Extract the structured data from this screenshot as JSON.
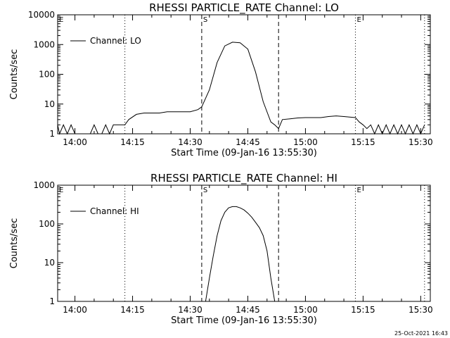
{
  "chart_data": [
    {
      "type": "line",
      "title": "RHESSI PARTICLE_RATE Channel: LO",
      "xlabel": "Start Time (09-Jan-16 13:55:30)",
      "ylabel": "Counts/sec",
      "yscale": "log",
      "ylim": [
        1,
        10000
      ],
      "yticks": [
        "1",
        "10",
        "100",
        "1000",
        "10000"
      ],
      "xlim_minutes_after_start": [
        0,
        97
      ],
      "xticks": [
        "14:00",
        "14:15",
        "14:30",
        "14:45",
        "15:00",
        "15:15",
        "15:30"
      ],
      "legend": {
        "position": "top-left",
        "entries": [
          "Channel: LO"
        ]
      },
      "markers": [
        {
          "label": "E",
          "time": "13:55:30",
          "style": "dotted"
        },
        {
          "label": "",
          "time": "14:13",
          "style": "dotted"
        },
        {
          "label": "S",
          "time": "14:33",
          "style": "dashed"
        },
        {
          "label": "",
          "time": "14:53",
          "style": "dashed"
        },
        {
          "label": "E",
          "time": "15:13",
          "style": "dotted"
        },
        {
          "label": "",
          "time": "15:31",
          "style": "dotted"
        }
      ],
      "series": [
        {
          "name": "Channel: LO",
          "x": [
            "13:55:30",
            "13:56",
            "13:57",
            "13:58",
            "13:59",
            "14:00",
            "14:01",
            "14:02",
            "14:03",
            "14:04",
            "14:05",
            "14:06",
            "14:07",
            "14:08",
            "14:09",
            "14:10",
            "14:11",
            "14:12",
            "14:13",
            "14:14",
            "14:16",
            "14:18",
            "14:20",
            "14:22",
            "14:24",
            "14:26",
            "14:28",
            "14:30",
            "14:32",
            "14:33",
            "14:35",
            "14:37",
            "14:39",
            "14:41",
            "14:43",
            "14:45",
            "14:47",
            "14:49",
            "14:51",
            "14:52",
            "14:53",
            "14:54",
            "14:56",
            "14:58",
            "15:00",
            "15:02",
            "15:04",
            "15:06",
            "15:08",
            "15:10",
            "15:12",
            "15:13",
            "15:14",
            "15:15",
            "15:16",
            "15:17",
            "15:18",
            "15:19",
            "15:20",
            "15:21",
            "15:22",
            "15:23",
            "15:24",
            "15:25",
            "15:26",
            "15:27",
            "15:28",
            "15:29",
            "15:30",
            "15:31"
          ],
          "y": [
            2,
            1,
            2,
            1,
            2,
            1,
            1,
            1,
            1,
            1,
            2,
            1,
            1,
            2,
            1,
            2,
            2,
            2,
            2,
            3,
            4.5,
            5,
            5,
            5,
            5.5,
            5.5,
            5.5,
            5.5,
            6.5,
            8,
            30,
            250,
            900,
            1200,
            1150,
            700,
            120,
            12,
            2.5,
            2,
            1.5,
            3,
            3.2,
            3.4,
            3.5,
            3.5,
            3.5,
            3.8,
            4,
            3.8,
            3.6,
            3.5,
            2.5,
            2,
            1.5,
            2,
            1,
            2,
            1,
            2,
            1,
            2,
            1,
            2,
            1,
            2,
            1,
            2,
            1,
            2
          ]
        }
      ]
    },
    {
      "type": "line",
      "title": "RHESSI PARTICLE_RATE Channel: HI",
      "xlabel": "Start Time (09-Jan-16 13:55:30)",
      "ylabel": "Counts/sec",
      "yscale": "log",
      "ylim": [
        1,
        1000
      ],
      "yticks": [
        "1",
        "10",
        "100",
        "1000"
      ],
      "xlim_minutes_after_start": [
        0,
        97
      ],
      "xticks": [
        "14:00",
        "14:15",
        "14:30",
        "14:45",
        "15:00",
        "15:15",
        "15:30"
      ],
      "legend": {
        "position": "top-left",
        "entries": [
          "Channel: HI"
        ]
      },
      "markers": [
        {
          "label": "E",
          "time": "13:55:30",
          "style": "dotted"
        },
        {
          "label": "",
          "time": "14:13",
          "style": "dotted"
        },
        {
          "label": "S",
          "time": "14:33",
          "style": "dashed"
        },
        {
          "label": "",
          "time": "14:53",
          "style": "dashed"
        },
        {
          "label": "E",
          "time": "15:13",
          "style": "dotted"
        },
        {
          "label": "",
          "time": "15:31",
          "style": "dotted"
        }
      ],
      "series": [
        {
          "name": "Channel: HI",
          "x": [
            "14:34",
            "14:35",
            "14:36",
            "14:37",
            "14:38",
            "14:39",
            "14:40",
            "14:41",
            "14:42",
            "14:43",
            "14:44",
            "14:45",
            "14:46",
            "14:47",
            "14:48",
            "14:49",
            "14:50",
            "14:51",
            "14:52"
          ],
          "y": [
            1,
            4,
            15,
            50,
            120,
            200,
            260,
            280,
            280,
            260,
            230,
            190,
            150,
            110,
            80,
            50,
            20,
            4,
            1
          ]
        }
      ]
    }
  ],
  "footer": {
    "timestamp": "25-Oct-2021 16:43"
  }
}
